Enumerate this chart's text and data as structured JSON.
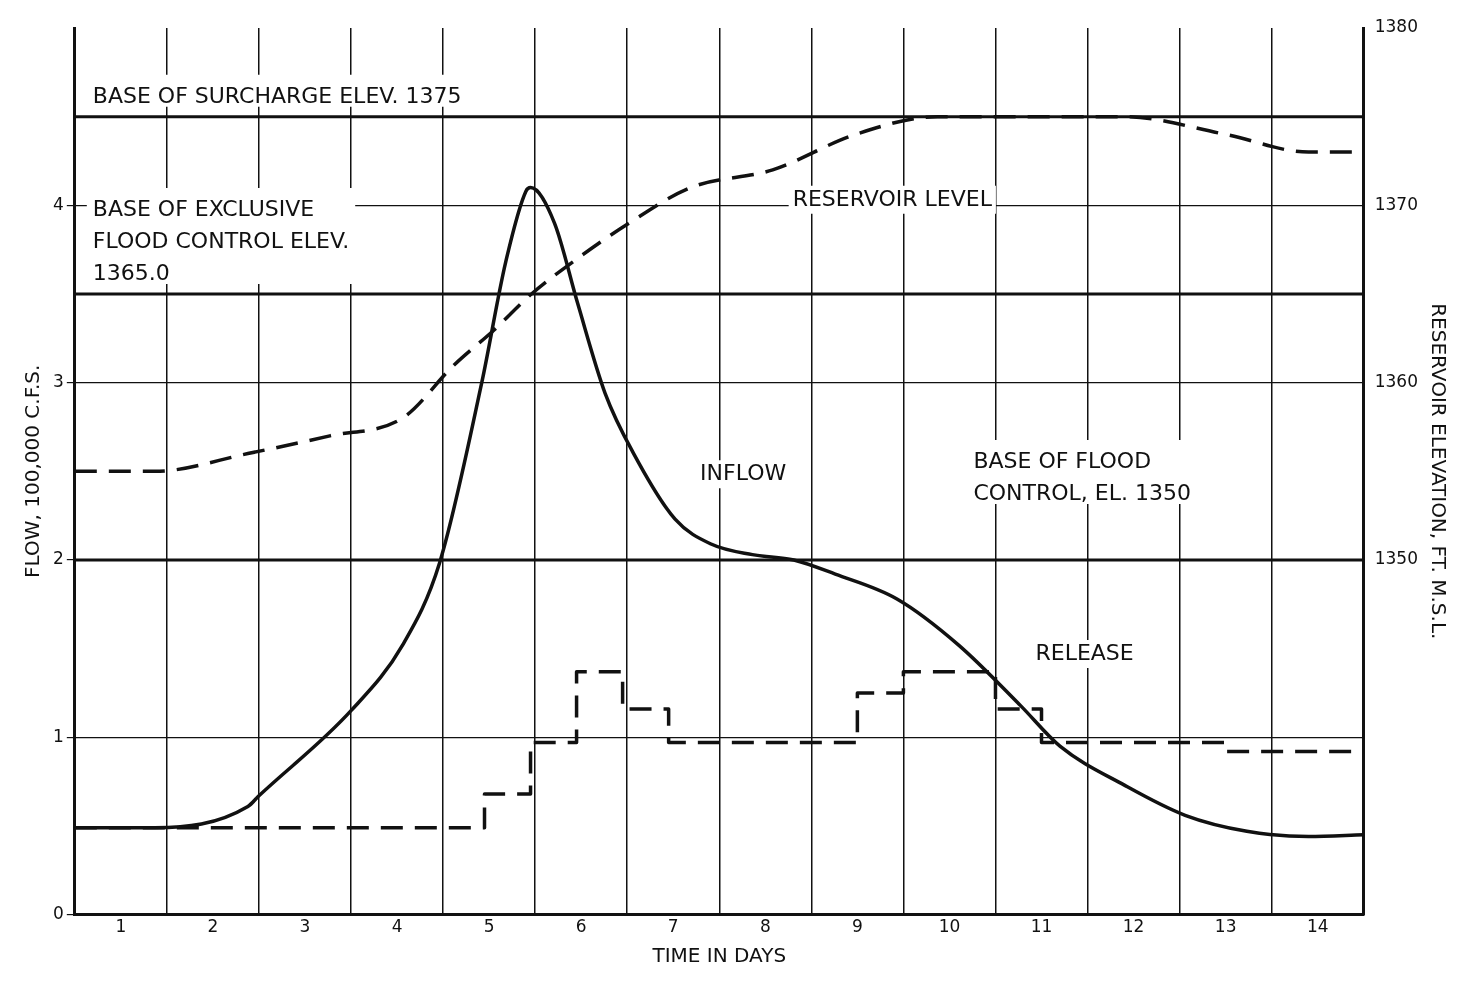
{
  "chart_data": {
    "type": "line",
    "xlabel": "TIME IN DAYS",
    "ylabel": "FLOW, 100,000 C.F.S.",
    "y2label": "RESERVOIR ELEVATION, FT. M.S.L.",
    "xlim": [
      0.5,
      14.5
    ],
    "xticks": [
      1,
      {
        "value": 1.5,
        "label": null
      },
      2,
      {
        "value": 2.5,
        "label": null
      },
      3,
      {
        "value": 3.5,
        "label": null
      },
      4,
      {
        "value": 4.5,
        "label": null
      },
      5,
      {
        "value": 5.5,
        "label": null
      },
      6,
      {
        "value": 6.5,
        "label": null
      },
      7,
      {
        "value": 7.5,
        "label": null
      },
      8,
      {
        "value": 8.5,
        "label": null
      },
      9,
      {
        "value": 9.5,
        "label": null
      },
      10,
      {
        "value": 10.5,
        "label": null
      },
      11,
      {
        "value": 11.5,
        "label": null
      },
      12,
      {
        "value": 12.5,
        "label": null
      },
      13,
      {
        "value": 13.5,
        "label": null
      },
      14
    ],
    "ylim": [
      0,
      5
    ],
    "yticks": [
      0,
      1,
      2,
      3,
      4
    ],
    "y2lim": [
      1330,
      1380
    ],
    "y2ticks": [
      1350,
      1360,
      1370,
      1380
    ],
    "grid": true,
    "legend": false,
    "series": [
      {
        "name": "INFLOW",
        "color": "#111111",
        "line_style": "solid",
        "x": [
          0.5,
          1.37,
          2.38,
          2.5,
          3.5,
          4.06,
          4.46,
          4.92,
          5.18,
          5.4,
          5.45,
          5.71,
          5.96,
          6.26,
          6.57,
          7.02,
          7.41,
          7.86,
          8.31,
          8.76,
          9.43,
          10.1,
          10.77,
          11.2,
          11.9,
          12.56,
          13.23,
          13.9,
          14.5
        ],
        "values": [
          0.49,
          0.49,
          0.61,
          0.67,
          1.15,
          1.52,
          1.98,
          3.0,
          3.68,
          4.08,
          4.1,
          3.9,
          3.45,
          2.94,
          2.6,
          2.23,
          2.09,
          2.03,
          2.0,
          1.92,
          1.78,
          1.52,
          1.18,
          0.95,
          0.73,
          0.56,
          0.47,
          0.44,
          0.45
        ]
      },
      {
        "name": "RELEASE",
        "type": "step",
        "color": "#111111",
        "line_style": "dashed",
        "x": [
          0.5,
          4.95,
          5.45,
          5.95,
          6.45,
          6.95,
          9.0,
          9.5,
          10.5,
          11.0,
          13.0,
          14.5
        ],
        "values": [
          0.49,
          0.68,
          0.97,
          1.37,
          1.16,
          0.97,
          1.25,
          1.37,
          1.16,
          0.97,
          0.92,
          0.92
        ]
      },
      {
        "name": "RESERVOIR LEVEL",
        "axis": "y2",
        "color": "#111111",
        "line_style": "dashed",
        "x": [
          0.5,
          1.37,
          2.38,
          3.27,
          4.06,
          4.62,
          5.06,
          5.46,
          5.96,
          6.52,
          7.19,
          8.08,
          8.98,
          9.87,
          10.88,
          11.89,
          13.0,
          13.9,
          14.5
        ],
        "values": [
          1355,
          1355,
          1356,
          1357,
          1358,
          1361,
          1363,
          1365,
          1367,
          1369,
          1371,
          1372,
          1374,
          1375,
          1375,
          1375,
          1374,
          1373,
          1373
        ]
      }
    ],
    "ref_lines": [
      {
        "axis": "y2",
        "value": 1375,
        "label": "BASE OF SURCHARGE ELEV. 1375"
      },
      {
        "axis": "y2",
        "value": 1365,
        "label": "BASE OF EXCLUSIVE FLOOD CONTROL ELEV. 1365.0"
      },
      {
        "axis": "y2",
        "value": 1350,
        "label": "BASE OF FLOOD CONTROL, EL. 1350"
      }
    ]
  }
}
